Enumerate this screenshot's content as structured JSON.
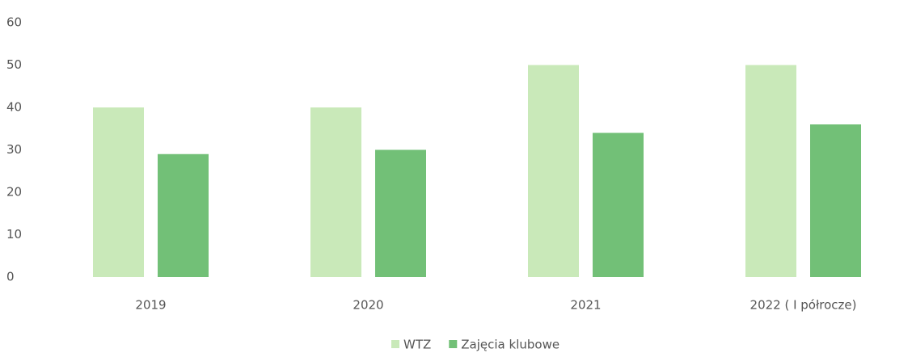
{
  "chart_data": {
    "type": "bar",
    "categories": [
      "2019",
      "2020",
      "2021",
      "2022 ( I półrocze)"
    ],
    "series": [
      {
        "name": "WTZ",
        "color": "#c9e9b9",
        "values": [
          40,
          40,
          50,
          50
        ]
      },
      {
        "name": "Zajęcia klubowe",
        "color": "#72c077",
        "values": [
          29,
          30,
          34,
          36
        ]
      }
    ],
    "ylim": [
      0,
      60
    ],
    "yticks": [
      0,
      10,
      20,
      30,
      40,
      50,
      60
    ],
    "grid": false,
    "legend": "bottom"
  }
}
